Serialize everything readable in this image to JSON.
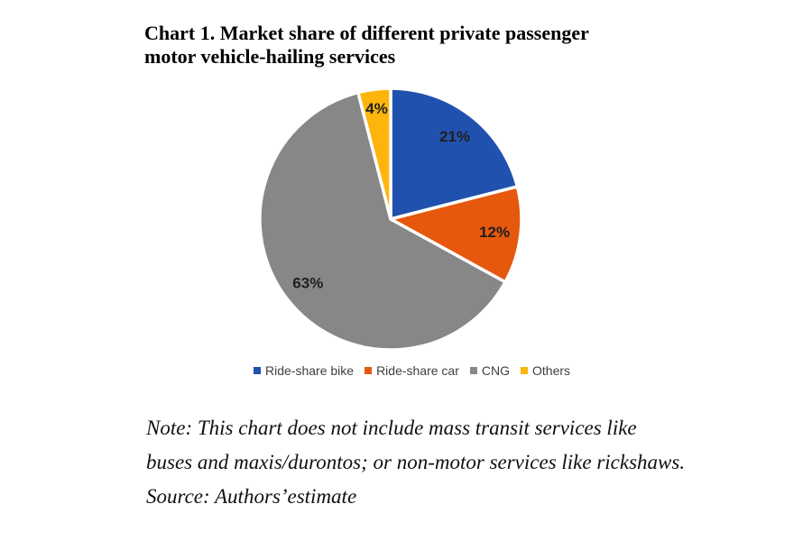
{
  "title": {
    "line1": "Chart 1. Market share of different private passenger",
    "line2": "motor vehicle-hailing services"
  },
  "chart_data": {
    "type": "pie",
    "title": "Chart 1. Market share of different private passenger motor vehicle-hailing services",
    "start_angle_deg": 0,
    "direction": "clockwise",
    "total": 100,
    "slices": [
      {
        "label": "Ride-share bike",
        "value": 21,
        "display": "21%",
        "color": "#2151AE"
      },
      {
        "label": "Ride-share car",
        "value": 12,
        "display": "12%",
        "color": "#E6580D"
      },
      {
        "label": "CNG",
        "value": 63,
        "display": "63%",
        "color": "#878787"
      },
      {
        "label": "Others",
        "value": 4,
        "display": "4%",
        "color": "#FDB50E"
      }
    ],
    "slice_label_color": "#1F1F1F",
    "slice_border_color": "#FFFFFF",
    "legend_position": "bottom",
    "legend_text_color": "#3F3F3F"
  },
  "note": {
    "line1": "Note: This chart does not include mass transit services like",
    "line2": "buses and maxis/durontos; or non-motor services like rickshaws.",
    "source": "Source: Authors’estimate"
  }
}
